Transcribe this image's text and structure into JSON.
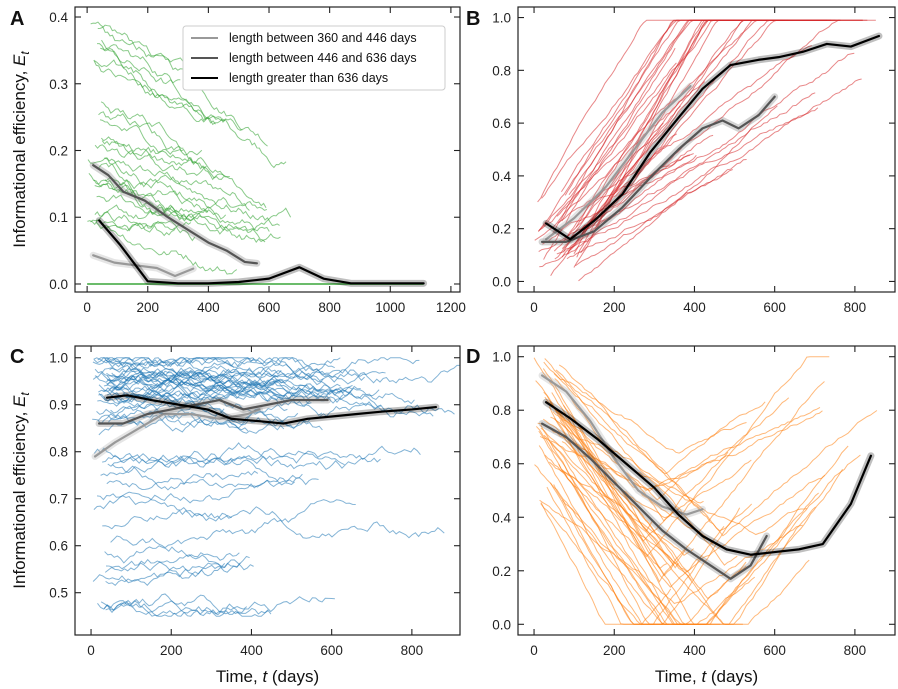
{
  "chart_data": [
    {
      "type": "line",
      "panel": "A",
      "ylabel": "Informational efficiency, E_t",
      "xlabel": "",
      "xlim": [
        -40,
        1230
      ],
      "ylim": [
        -0.012,
        0.415
      ],
      "xticks": [
        0,
        200,
        400,
        600,
        800,
        1000,
        1200
      ],
      "yticks": [
        0.0,
        0.1,
        0.2,
        0.3,
        0.4
      ],
      "ytick_labels": [
        "0.0",
        "0.1",
        "0.2",
        "0.3",
        "0.4"
      ],
      "trace_color": "#2ca02c",
      "legend": {
        "placement": "top-right",
        "entries": [
          {
            "label": "length between 360 and 446 days",
            "color": "#999999"
          },
          {
            "label": "length between 446 and 636 days",
            "color": "#555555"
          },
          {
            "label": "length greater than 636 days",
            "color": "#000000"
          }
        ]
      },
      "series": [
        {
          "color": "#999999",
          "x": [
            20,
            90,
            160,
            230,
            290,
            350
          ],
          "y": [
            0.043,
            0.032,
            0.028,
            0.024,
            0.012,
            0.023
          ]
        },
        {
          "color": "#555555",
          "x": [
            20,
            70,
            120,
            190,
            260,
            330,
            400,
            460,
            520,
            560
          ],
          "y": [
            0.178,
            0.163,
            0.138,
            0.125,
            0.102,
            0.082,
            0.062,
            0.05,
            0.033,
            0.031
          ]
        },
        {
          "color": "#000000",
          "x": [
            40,
            110,
            200,
            300,
            400,
            500,
            600,
            700,
            780,
            870,
            1110
          ],
          "y": [
            0.095,
            0.058,
            0.004,
            0.001,
            0.001,
            0.003,
            0.008,
            0.025,
            0.008,
            0.001,
            0.001
          ]
        }
      ]
    },
    {
      "type": "line",
      "panel": "B",
      "ylabel": "",
      "xlabel": "",
      "xlim": [
        -40,
        900
      ],
      "ylim": [
        -0.04,
        1.04
      ],
      "xticks": [
        0,
        200,
        400,
        600,
        800
      ],
      "yticks": [
        0.0,
        0.2,
        0.4,
        0.6,
        0.8,
        1.0
      ],
      "ytick_labels": [
        "0.0",
        "0.2",
        "0.4",
        "0.6",
        "0.8",
        "1.0"
      ],
      "trace_color": "#d62728",
      "series": [
        {
          "color": "#999999",
          "x": [
            30,
            100,
            180,
            250,
            320,
            390
          ],
          "y": [
            0.16,
            0.24,
            0.36,
            0.5,
            0.64,
            0.74
          ]
        },
        {
          "color": "#555555",
          "x": [
            20,
            80,
            150,
            220,
            300,
            360,
            420,
            470,
            510,
            560,
            600
          ],
          "y": [
            0.15,
            0.15,
            0.19,
            0.28,
            0.41,
            0.5,
            0.58,
            0.61,
            0.58,
            0.63,
            0.7
          ]
        },
        {
          "color": "#000000",
          "x": [
            30,
            90,
            150,
            220,
            290,
            360,
            420,
            490,
            560,
            610,
            670,
            730,
            790,
            860
          ],
          "y": [
            0.22,
            0.16,
            0.23,
            0.33,
            0.49,
            0.62,
            0.73,
            0.82,
            0.84,
            0.85,
            0.87,
            0.9,
            0.89,
            0.93
          ]
        }
      ]
    },
    {
      "type": "line",
      "panel": "C",
      "ylabel": "Informational efficiency, E_t",
      "xlabel": "Time, t (days)",
      "xlim": [
        -40,
        920
      ],
      "ylim": [
        0.41,
        1.025
      ],
      "xticks": [
        0,
        200,
        400,
        600,
        800
      ],
      "yticks": [
        0.5,
        0.6,
        0.7,
        0.8,
        0.9,
        1.0
      ],
      "ytick_labels": [
        "0.5",
        "0.6",
        "0.7",
        "0.8",
        "0.9",
        "1.0"
      ],
      "trace_color": "#1f77b4",
      "series": [
        {
          "color": "#999999",
          "x": [
            10,
            60,
            120,
            180,
            250,
            320,
            390,
            420
          ],
          "y": [
            0.79,
            0.82,
            0.85,
            0.88,
            0.88,
            0.87,
            0.88,
            0.89
          ]
        },
        {
          "color": "#555555",
          "x": [
            20,
            80,
            140,
            200,
            260,
            320,
            380,
            440,
            500,
            560,
            590
          ],
          "y": [
            0.86,
            0.86,
            0.88,
            0.89,
            0.9,
            0.91,
            0.89,
            0.9,
            0.91,
            0.91,
            0.91
          ]
        },
        {
          "color": "#000000",
          "x": [
            40,
            90,
            150,
            220,
            290,
            350,
            420,
            480,
            540,
            600,
            660,
            720,
            800,
            860
          ],
          "y": [
            0.915,
            0.92,
            0.91,
            0.9,
            0.89,
            0.87,
            0.865,
            0.86,
            0.87,
            0.875,
            0.88,
            0.885,
            0.89,
            0.895
          ]
        }
      ]
    },
    {
      "type": "line",
      "panel": "D",
      "ylabel": "",
      "xlabel": "Time, t (days)",
      "xlim": [
        -40,
        900
      ],
      "ylim": [
        -0.04,
        1.04
      ],
      "xticks": [
        0,
        200,
        400,
        600,
        800
      ],
      "yticks": [
        0.0,
        0.2,
        0.4,
        0.6,
        0.8,
        1.0
      ],
      "ytick_labels": [
        "0.0",
        "0.2",
        "0.4",
        "0.6",
        "0.8",
        "1.0"
      ],
      "trace_color": "#ff7f0e",
      "series": [
        {
          "color": "#999999",
          "x": [
            20,
            80,
            140,
            200,
            260,
            320,
            380,
            420
          ],
          "y": [
            0.93,
            0.87,
            0.76,
            0.62,
            0.5,
            0.44,
            0.41,
            0.43
          ]
        },
        {
          "color": "#555555",
          "x": [
            20,
            80,
            140,
            200,
            260,
            320,
            380,
            440,
            490,
            540,
            580
          ],
          "y": [
            0.75,
            0.7,
            0.62,
            0.53,
            0.44,
            0.35,
            0.28,
            0.22,
            0.17,
            0.22,
            0.33
          ]
        },
        {
          "color": "#000000",
          "x": [
            30,
            90,
            160,
            230,
            300,
            360,
            420,
            480,
            540,
            600,
            660,
            720,
            790,
            840
          ],
          "y": [
            0.83,
            0.77,
            0.69,
            0.6,
            0.51,
            0.41,
            0.33,
            0.28,
            0.26,
            0.27,
            0.28,
            0.3,
            0.45,
            0.63
          ]
        }
      ]
    }
  ]
}
